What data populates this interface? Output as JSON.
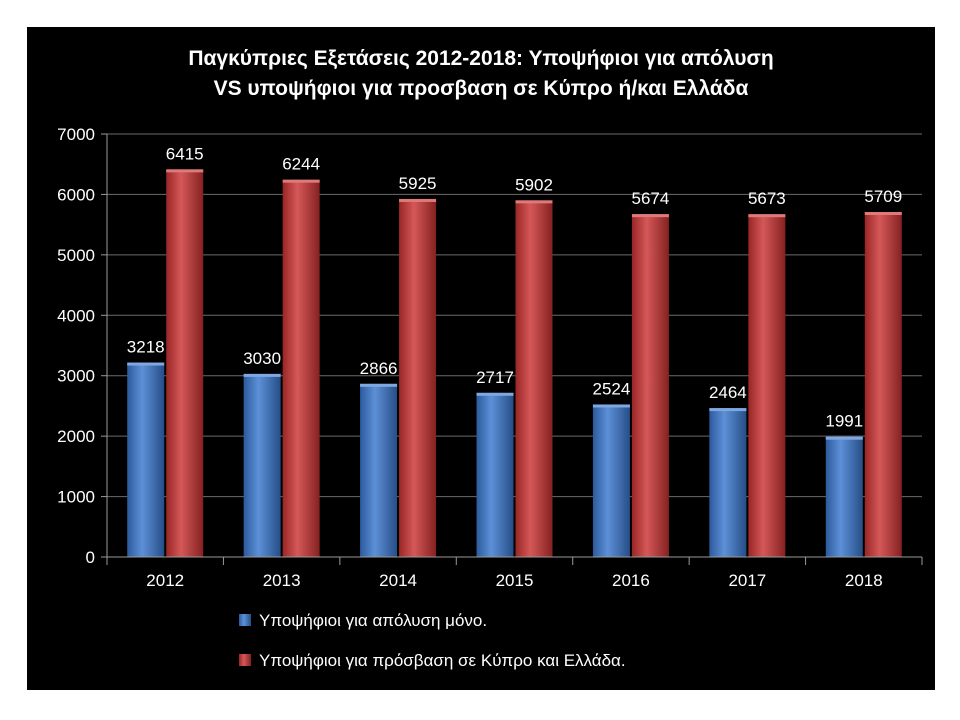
{
  "chart_data": {
    "type": "bar",
    "title": "Παγκύπριες Εξετάσεις 2012-2018: Υποψήφιοι για απόλυση VS υποψήφιοι για προσβαση σε Κύπρο ή/και Ελλάδα",
    "title_lines": [
      "Παγκύπριες Εξετάσεις 2012-2018: Υποψήφιοι για απόλυση",
      "VS υποψήφιοι για προσβαση σε Κύπρο ή/και Ελλάδα"
    ],
    "categories": [
      "2012",
      "2013",
      "2014",
      "2015",
      "2016",
      "2017",
      "2018"
    ],
    "series": [
      {
        "name": "Υποψήφιοι για απόλυση μόνο.",
        "color": "#3a78d0",
        "values": [
          3218,
          3030,
          2866,
          2717,
          2524,
          2464,
          1991
        ]
      },
      {
        "name": "Υποψήφιοι για πρόσβαση σε Κύπρο και Ελλάδα.",
        "color": "#cc3333",
        "values": [
          6415,
          6244,
          5925,
          5902,
          5674,
          5673,
          5709
        ]
      }
    ],
    "ylim": [
      0,
      7000
    ],
    "yticks": [
      0,
      1000,
      2000,
      3000,
      4000,
      5000,
      6000,
      7000
    ],
    "grid": true,
    "legend": "bottom",
    "data_labels": true,
    "background": "#000000",
    "text_color": "#ffffff"
  }
}
